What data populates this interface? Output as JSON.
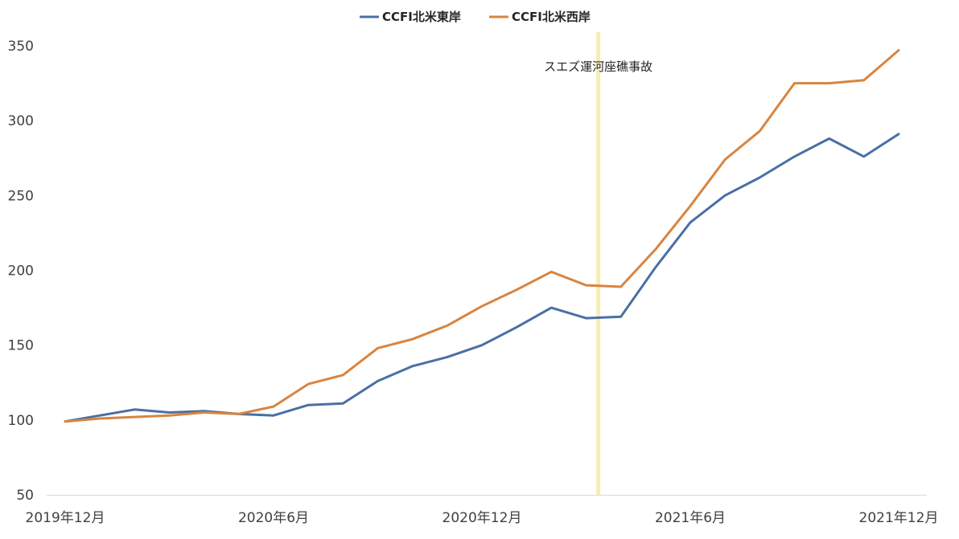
{
  "chart_data": {
    "type": "line",
    "title": "",
    "xlabel": "",
    "ylabel": "",
    "ylim": [
      50,
      350
    ],
    "y_ticks": [
      50,
      100,
      150,
      200,
      250,
      300,
      350
    ],
    "grid": false,
    "legend_position": "top-center",
    "x_tick_labels": [
      {
        "index": 0,
        "label": "2019年12月"
      },
      {
        "index": 6,
        "label": "2020年6月"
      },
      {
        "index": 12,
        "label": "2020年12月"
      },
      {
        "index": 18,
        "label": "2021年6月"
      },
      {
        "index": 24,
        "label": "2021年12月"
      }
    ],
    "x": [
      "2019-12",
      "2020-01",
      "2020-02",
      "2020-03",
      "2020-04",
      "2020-05",
      "2020-06",
      "2020-07",
      "2020-08",
      "2020-09",
      "2020-10",
      "2020-11",
      "2020-12",
      "2021-01",
      "2021-02",
      "2021-03",
      "2021-04",
      "2021-05",
      "2021-06",
      "2021-07",
      "2021-08",
      "2021-09",
      "2021-10",
      "2021-11",
      "2021-12"
    ],
    "series": [
      {
        "name": "CCFI北米東岸",
        "color": "#4a6fa5",
        "values": [
          99,
          103,
          107,
          105,
          106,
          104,
          103,
          110,
          111,
          126,
          136,
          142,
          150,
          162,
          175,
          168,
          169,
          202,
          232,
          250,
          262,
          276,
          288,
          276,
          291
        ]
      },
      {
        "name": "CCFI北米西岸",
        "color": "#d9843e",
        "values": [
          99,
          101,
          102,
          103,
          105,
          104,
          109,
          124,
          130,
          148,
          154,
          163,
          176,
          187,
          199,
          190,
          189,
          214,
          243,
          274,
          293,
          325,
          325,
          327,
          347
        ]
      }
    ],
    "annotations": [
      {
        "type": "vertical-band",
        "x_index": 15.35,
        "label": "スエズ運河座礁事故",
        "color": "#f6edb4"
      }
    ]
  }
}
